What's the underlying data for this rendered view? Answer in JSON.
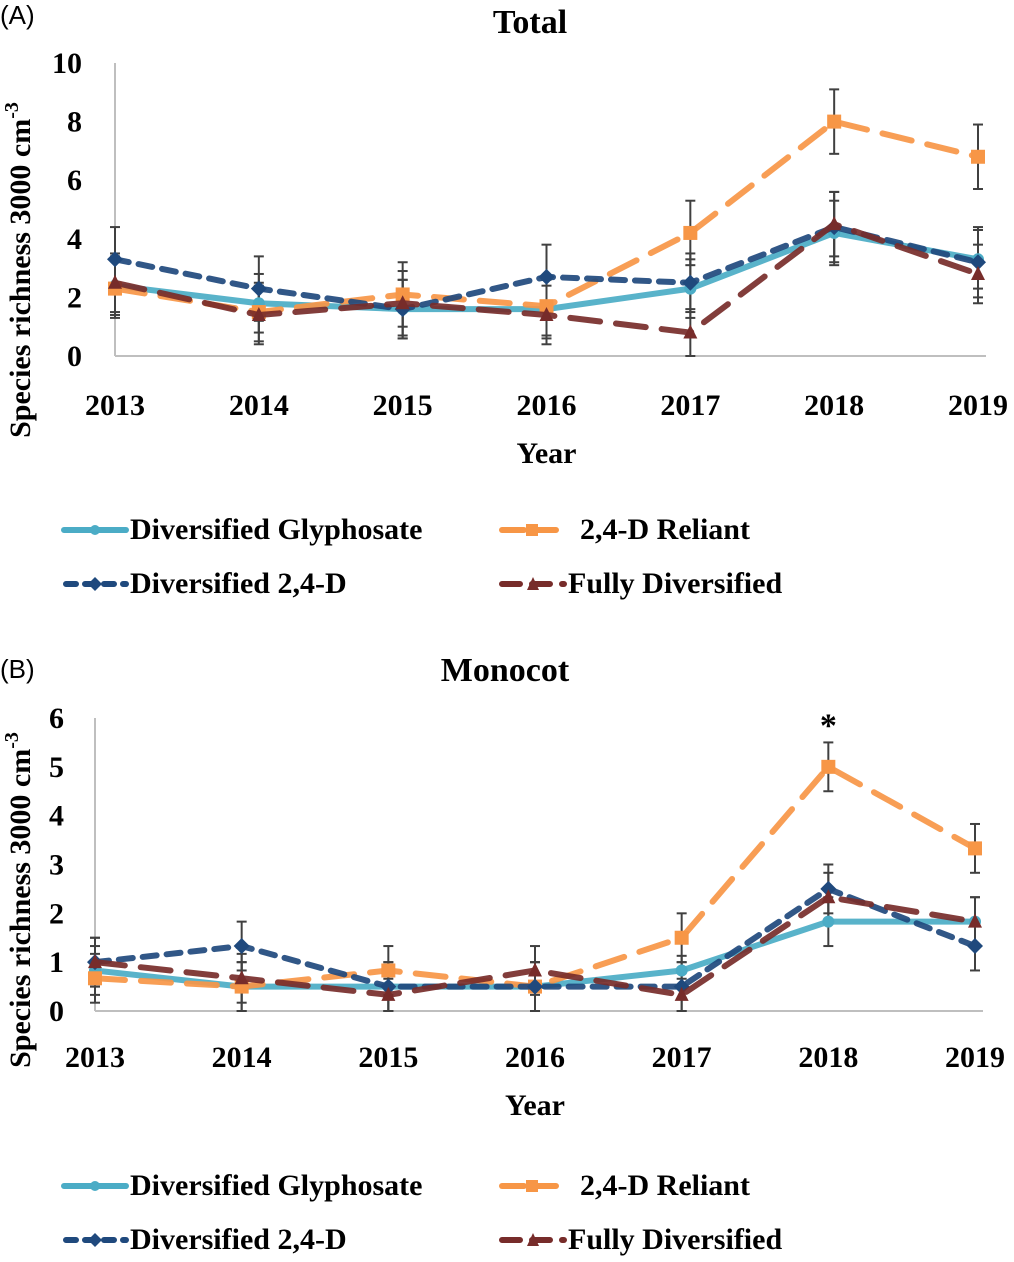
{
  "chart_data": [
    {
      "type": "line",
      "panel_label": "(A)",
      "title": "Total",
      "xlabel": "Year",
      "ylabel": "Species richness 3000 cm",
      "ylabel_superscript": "-3",
      "categories": [
        "2013",
        "2014",
        "2015",
        "2016",
        "2017",
        "2018",
        "2019"
      ],
      "ylim": [
        0,
        10
      ],
      "yticks": [
        "0",
        "2",
        "4",
        "6",
        "8",
        "10"
      ],
      "ytick_values": [
        0,
        2,
        4,
        6,
        8,
        10
      ],
      "grid": false,
      "legend_position": "bottom",
      "annotations": [],
      "series": [
        {
          "name": "Diversified Glyphosate",
          "color": "#4BACC6",
          "dash": "solid",
          "marker": "circle",
          "values": [
            2.4,
            1.8,
            1.6,
            1.6,
            2.3,
            4.2,
            3.3
          ],
          "errors": [
            1.0,
            1.0,
            1.0,
            1.0,
            1.0,
            1.1,
            1.0
          ]
        },
        {
          "name": "2,4-D Reliant",
          "color": "#F79646",
          "dash": "long-dash",
          "marker": "square",
          "values": [
            2.3,
            1.5,
            2.1,
            1.7,
            4.2,
            8.0,
            6.8
          ],
          "errors": [
            1.0,
            1.0,
            1.1,
            1.0,
            1.1,
            1.1,
            1.1
          ]
        },
        {
          "name": "Diversified 2,4-D",
          "color": "#1F497D",
          "dash": "dash",
          "marker": "diamond",
          "values": [
            3.3,
            2.3,
            1.6,
            2.7,
            2.5,
            4.4,
            3.2
          ],
          "errors": [
            1.1,
            1.1,
            1.0,
            1.1,
            1.0,
            1.2,
            1.2
          ]
        },
        {
          "name": "Fully Diversified",
          "color": "#772C2A",
          "dash": "long-dash",
          "marker": "triangle",
          "values": [
            2.5,
            1.4,
            1.8,
            1.4,
            0.8,
            4.5,
            2.8
          ],
          "errors": [
            1.0,
            1.0,
            1.1,
            1.0,
            0.8,
            1.1,
            1.0
          ]
        }
      ]
    },
    {
      "type": "line",
      "panel_label": "(B)",
      "title": "Monocot",
      "xlabel": "Year",
      "ylabel": "Species richness 3000 cm",
      "ylabel_superscript": "-3",
      "categories": [
        "2013",
        "2014",
        "2015",
        "2016",
        "2017",
        "2018",
        "2019"
      ],
      "ylim": [
        0,
        6
      ],
      "yticks": [
        "0",
        "1",
        "2",
        "3",
        "4",
        "5",
        "6"
      ],
      "ytick_values": [
        0,
        1,
        2,
        3,
        4,
        5,
        6
      ],
      "grid": false,
      "legend_position": "bottom",
      "annotations": [
        {
          "text": "*",
          "category": "2018",
          "series": "2,4-D Reliant"
        }
      ],
      "series": [
        {
          "name": "Diversified Glyphosate",
          "color": "#4BACC6",
          "dash": "solid",
          "marker": "circle",
          "values": [
            0.83,
            0.5,
            0.5,
            0.5,
            0.83,
            1.83,
            1.83
          ],
          "errors": [
            0.5,
            0.5,
            0.5,
            0.5,
            0.3,
            0.5,
            0.5
          ]
        },
        {
          "name": "2,4-D Reliant",
          "color": "#F79646",
          "dash": "long-dash",
          "marker": "square",
          "values": [
            0.67,
            0.5,
            0.83,
            0.5,
            1.5,
            5.0,
            3.33
          ],
          "errors": [
            0.5,
            0.5,
            0.5,
            0.5,
            0.5,
            0.5,
            0.5
          ]
        },
        {
          "name": "Diversified 2,4-D",
          "color": "#1F497D",
          "dash": "dash",
          "marker": "diamond",
          "values": [
            1.0,
            1.33,
            0.5,
            0.5,
            0.5,
            2.5,
            1.33
          ],
          "errors": [
            0.5,
            0.5,
            0.5,
            0.5,
            0.5,
            0.5,
            0.5
          ]
        },
        {
          "name": "Fully Diversified",
          "color": "#772C2A",
          "dash": "long-dash",
          "marker": "triangle",
          "values": [
            1.0,
            0.67,
            0.33,
            0.83,
            0.33,
            2.33,
            1.83
          ],
          "errors": [
            0.5,
            0.5,
            0.33,
            0.5,
            0.33,
            0.5,
            0.5
          ]
        }
      ]
    }
  ],
  "legend": {
    "items": [
      {
        "label": "Diversified Glyphosate",
        "color": "#4BACC6",
        "marker": "circle",
        "dash": "solid"
      },
      {
        "label": "2,4-D Reliant",
        "color": "#F79646",
        "marker": "square",
        "dash": "long-dash"
      },
      {
        "label": "Diversified 2,4-D",
        "color": "#1F497D",
        "marker": "diamond",
        "dash": "dash"
      },
      {
        "label": "Fully Diversified",
        "color": "#772C2A",
        "marker": "triangle",
        "dash": "long-dash"
      }
    ]
  }
}
